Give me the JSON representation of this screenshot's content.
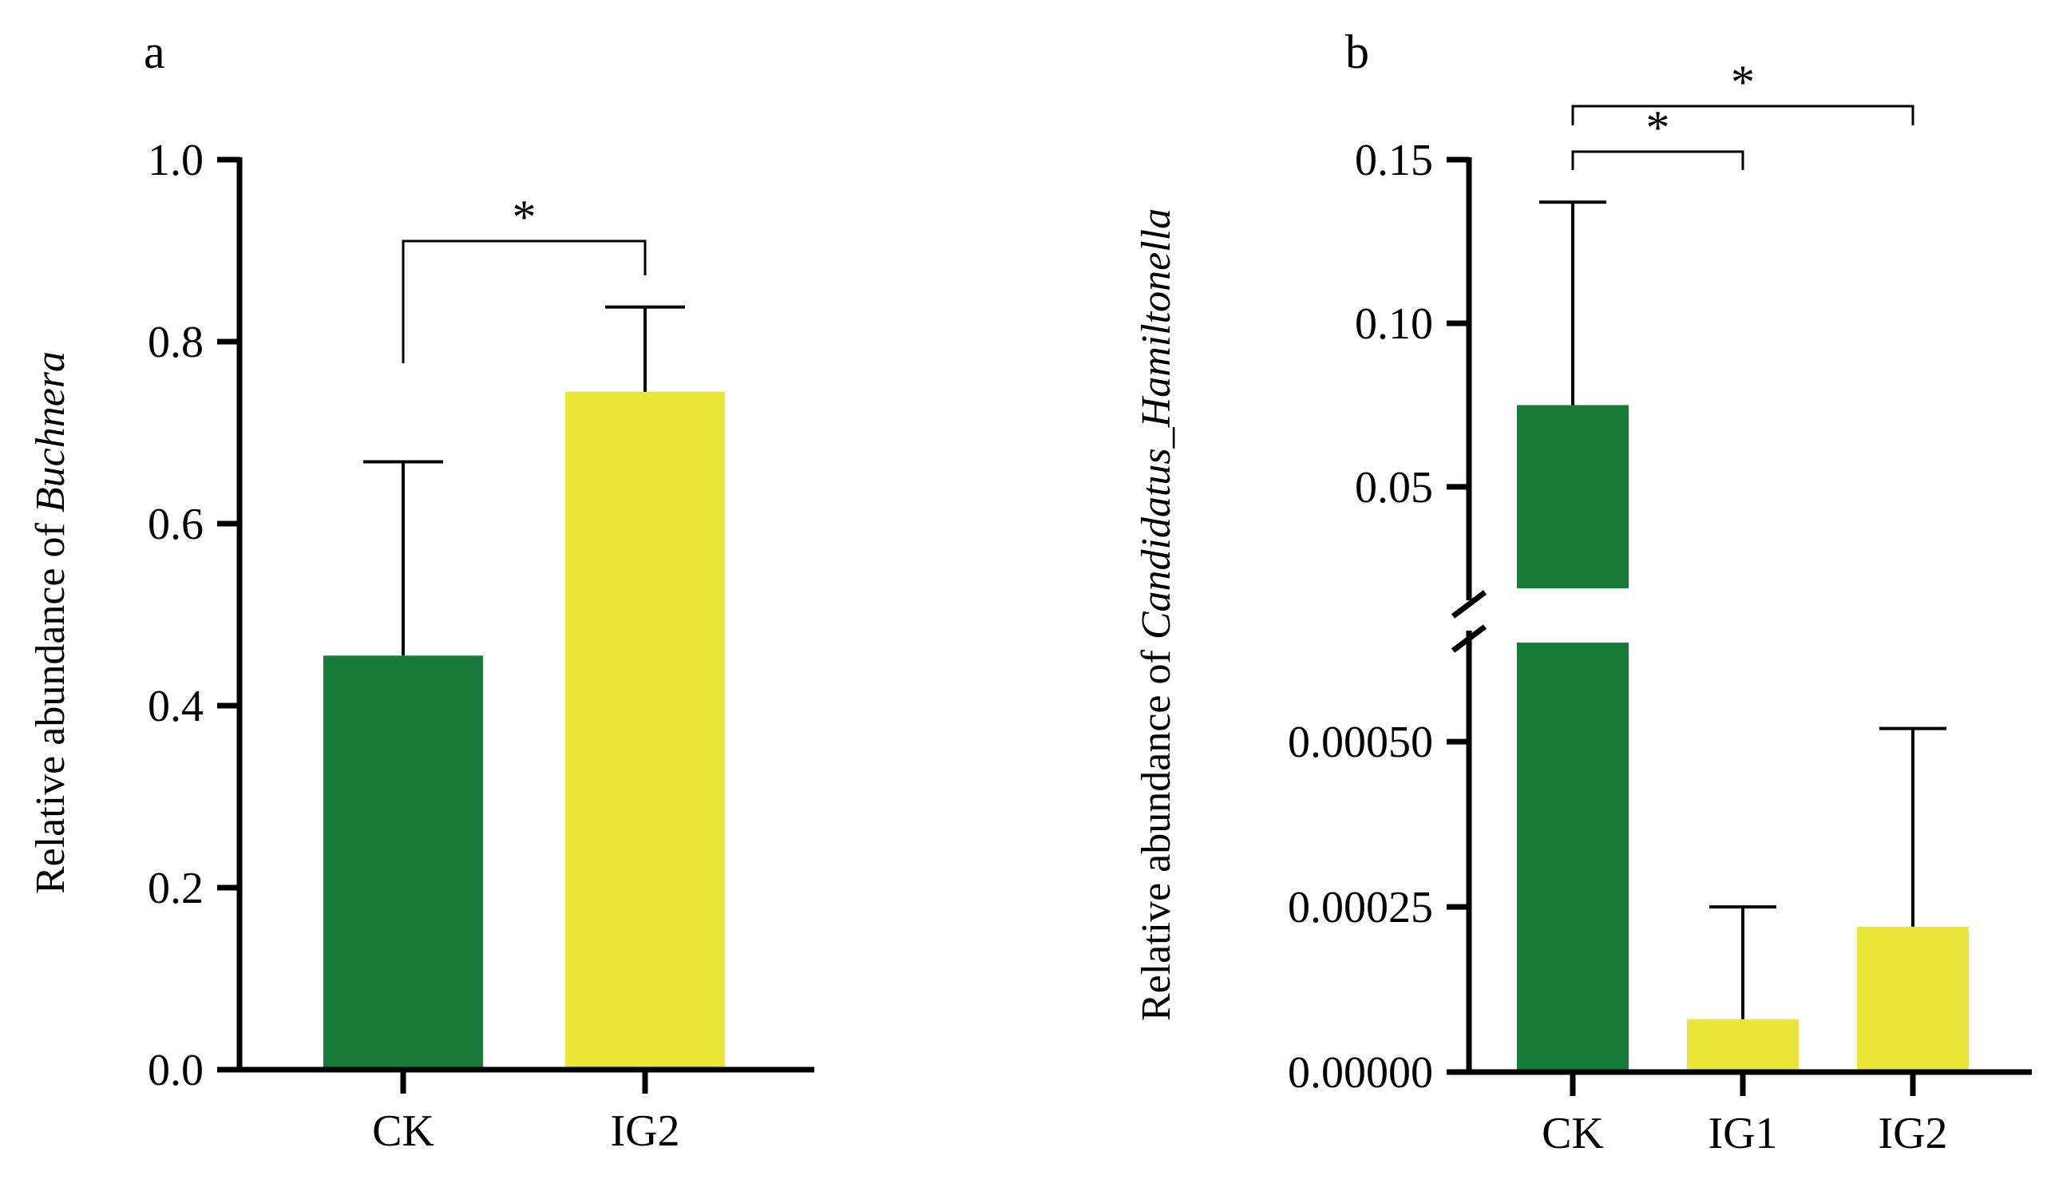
{
  "chart_data": [
    {
      "panel": "a",
      "type": "bar",
      "ylabel_prefix": "Relative abundance of ",
      "ylabel_taxon": "Buchnera",
      "categories": [
        "CK",
        "IG2"
      ],
      "values": [
        0.455,
        0.745
      ],
      "error_upper": [
        0.668,
        0.838
      ],
      "colors": [
        "#1a7a3a",
        "#ebe73a"
      ],
      "ylim": [
        0,
        1.0
      ],
      "yticks": [
        0.0,
        0.2,
        0.4,
        0.6,
        0.8,
        1.0
      ],
      "ytick_labels": [
        "0.0",
        "0.2",
        "0.4",
        "0.6",
        "0.8",
        "1.0"
      ],
      "significance": [
        {
          "from": "CK",
          "to": "IG2",
          "label": "*"
        }
      ]
    },
    {
      "panel": "b",
      "type": "bar",
      "ylabel_prefix": "Relative abundance of ",
      "ylabel_taxon": "Candidatus_Hamiltonella",
      "categories": [
        "CK",
        "IG1",
        "IG2"
      ],
      "values": [
        0.075,
        8e-05,
        0.00022
      ],
      "error_upper": [
        0.137,
        0.00025,
        0.00052
      ],
      "colors": [
        "#1a7a3a",
        "#ebe73a",
        "#ebe73a"
      ],
      "axis_break": true,
      "lower_ylim": [
        0,
        0.00065
      ],
      "upper_ylim": [
        0.019,
        0.15
      ],
      "lower_yticks": [
        0.0,
        0.00025,
        0.0005
      ],
      "lower_ytick_labels": [
        "0.00000",
        "0.00025",
        "0.00050"
      ],
      "upper_yticks": [
        0.05,
        0.1,
        0.15
      ],
      "upper_ytick_labels": [
        "0.05",
        "0.10",
        "0.15"
      ],
      "significance": [
        {
          "from": "CK",
          "to": "IG1",
          "label": "*"
        },
        {
          "from": "CK",
          "to": "IG2",
          "label": "*"
        }
      ]
    }
  ]
}
